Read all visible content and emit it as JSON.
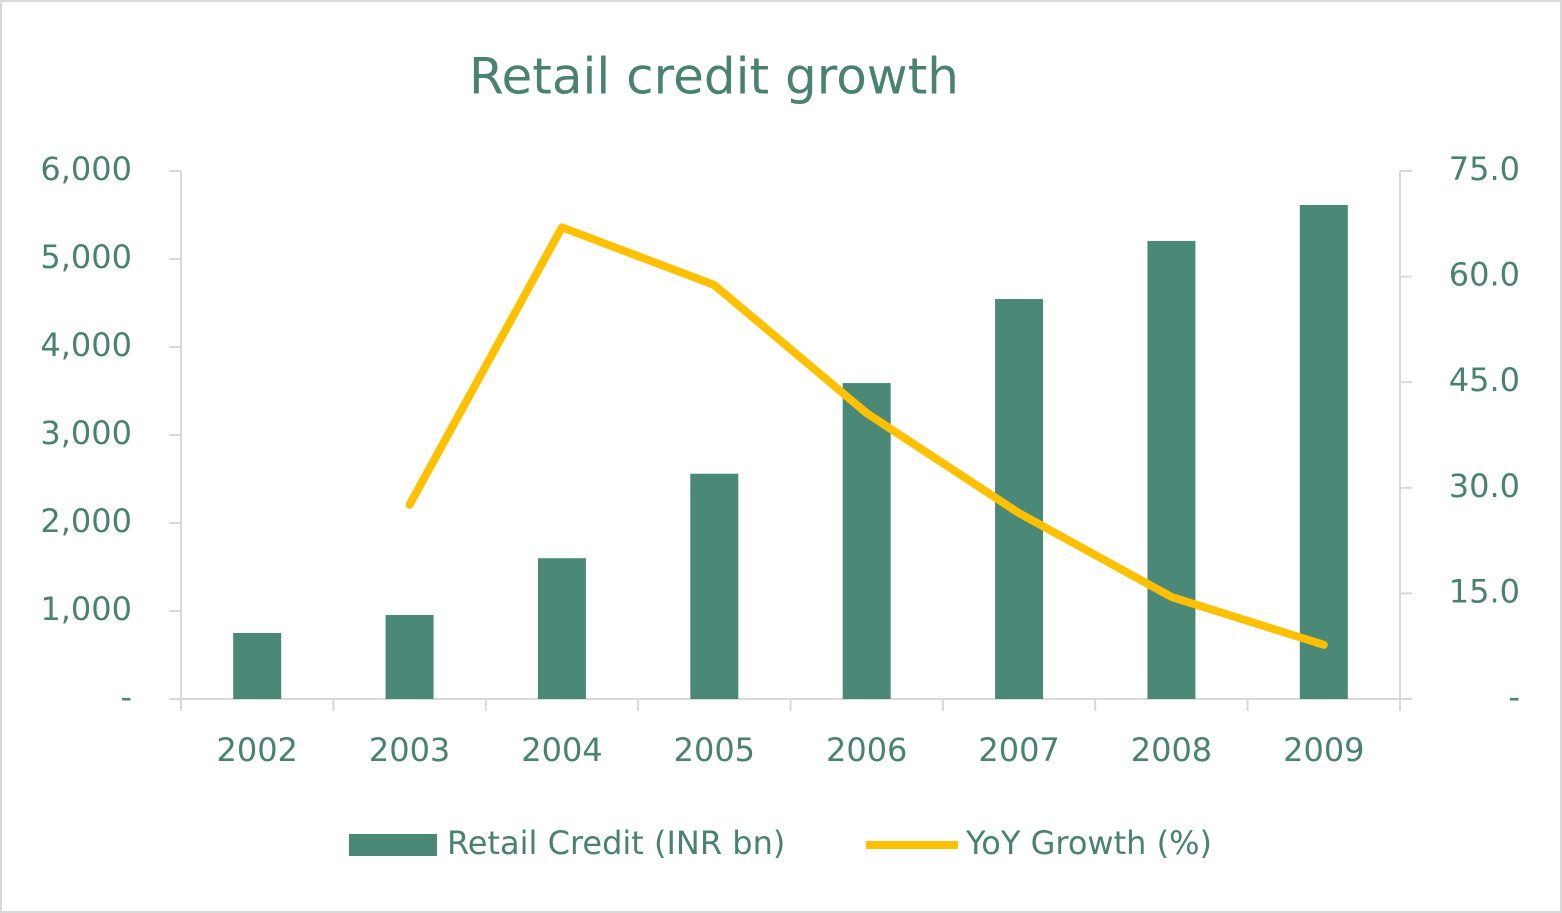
{
  "chart_data": {
    "type": "bar-line",
    "title": "Retail credit growth",
    "categories": [
      "2002",
      "2003",
      "2004",
      "2005",
      "2006",
      "2007",
      "2008",
      "2009"
    ],
    "series": [
      {
        "name": "Retail Credit (INR bn)",
        "type": "bar",
        "color": "#4a8878",
        "values": [
          750,
          955,
          1600,
          2560,
          3590,
          4545,
          5205,
          5614
        ]
      },
      {
        "name": "YoY Growth (%)",
        "type": "line",
        "axis": "y2",
        "color": "#ffc000",
        "values": [
          null,
          27.6,
          67.0,
          58.8,
          40.6,
          26.4,
          14.5,
          7.7
        ]
      }
    ],
    "ylim": [
      0,
      6000
    ],
    "yticks": [
      {
        "value": 0,
        "label": "-"
      },
      {
        "value": 1000,
        "label": "1,000"
      },
      {
        "value": 2000,
        "label": "2,000"
      },
      {
        "value": 3000,
        "label": "3,000"
      },
      {
        "value": 4000,
        "label": "4,000"
      },
      {
        "value": 5000,
        "label": "5,000"
      },
      {
        "value": 6000,
        "label": "6,000"
      }
    ],
    "y2lim": [
      0,
      75
    ],
    "y2ticks": [
      {
        "value": 0,
        "label": "-"
      },
      {
        "value": 15,
        "label": "15.0"
      },
      {
        "value": 30,
        "label": "30.0"
      },
      {
        "value": 45,
        "label": "45.0"
      },
      {
        "value": 60,
        "label": "60.0"
      },
      {
        "value": 75,
        "label": "75.0"
      }
    ],
    "legend": "bottom"
  }
}
